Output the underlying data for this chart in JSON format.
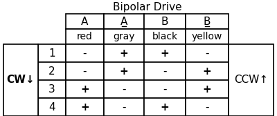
{
  "title": "Bipolar Drive",
  "col_headers_row1": [
    "A",
    "A",
    "B",
    "B"
  ],
  "col_headers_underline": [
    false,
    true,
    false,
    true
  ],
  "col_headers_row2": [
    "red",
    "gray",
    "black",
    "yellow"
  ],
  "row_labels": [
    "1",
    "2",
    "3",
    "4"
  ],
  "left_label": "CW↓",
  "right_label": "CCW↑",
  "table_data": [
    [
      "-",
      "+",
      "+",
      "-"
    ],
    [
      "-",
      "+",
      "-",
      "+"
    ],
    [
      "+",
      "-",
      "-",
      "+"
    ],
    [
      "+",
      "-",
      "+",
      "-"
    ]
  ],
  "bg_color": "#ffffff",
  "border_color": "#000000",
  "text_color": "#000000",
  "title_font_size": 11,
  "header_font_size": 10,
  "data_font_size": 11,
  "label_font_size": 11,
  "lw": 1.2
}
